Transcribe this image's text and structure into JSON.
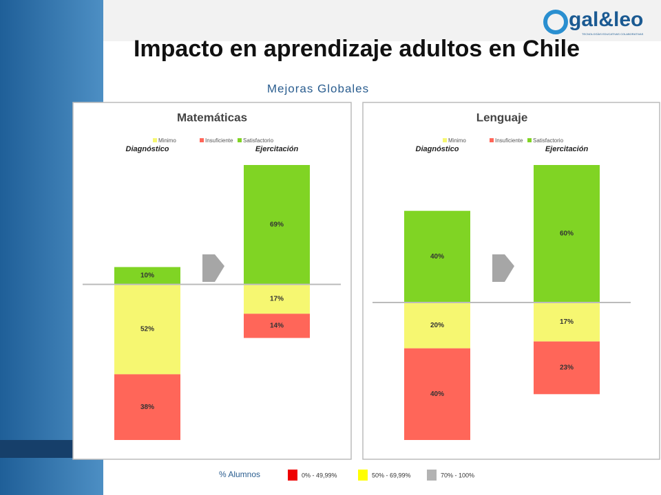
{
  "header": {
    "title": "Impacto en aprendizaje adultos en Chile",
    "subtitle": "Mejoras Globales"
  },
  "logo": {
    "text": "gal&leo",
    "tagline": "TECNOLOGÍAS EDUCATIVAS COLABORATIVAS"
  },
  "chart_data": [
    {
      "type": "bar",
      "title": "Matemáticas",
      "categories": [
        "Diagnóstico",
        "Ejercitación"
      ],
      "series": [
        {
          "name": "Minimo",
          "color": "#f6f771",
          "values": [
            52,
            17
          ],
          "value_labels": [
            "52%",
            "17%"
          ]
        },
        {
          "name": "Insuficiente",
          "color": "#ff6659",
          "values": [
            38,
            14
          ],
          "value_labels": [
            "38%",
            "14%"
          ]
        },
        {
          "name": "Satisfactorio",
          "color": "#80d424",
          "values": [
            10,
            69
          ],
          "value_labels": [
            "10%",
            "69%"
          ]
        }
      ]
    },
    {
      "type": "bar",
      "title": "Lenguaje",
      "categories": [
        "Diagnóstico",
        "Ejercitación"
      ],
      "series": [
        {
          "name": "Minimo",
          "color": "#f6f771",
          "values": [
            20,
            17
          ],
          "value_labels": [
            "20%",
            "17%"
          ]
        },
        {
          "name": "Insuficiente",
          "color": "#ff6659",
          "values": [
            40,
            23
          ],
          "value_labels": [
            "40%",
            "23%"
          ]
        },
        {
          "name": "Satisfactorio",
          "color": "#80d424",
          "values": [
            40,
            60
          ],
          "value_labels": [
            "40%",
            "60%"
          ]
        }
      ]
    }
  ],
  "footer": {
    "label": "% Alumnos",
    "items": [
      {
        "label": "0% - 49,99%",
        "color": "#ee0000"
      },
      {
        "label": "50% - 69,99%",
        "color": "#ffff00"
      },
      {
        "label": "70% - 100%",
        "color": "#b3b3b3"
      }
    ]
  }
}
